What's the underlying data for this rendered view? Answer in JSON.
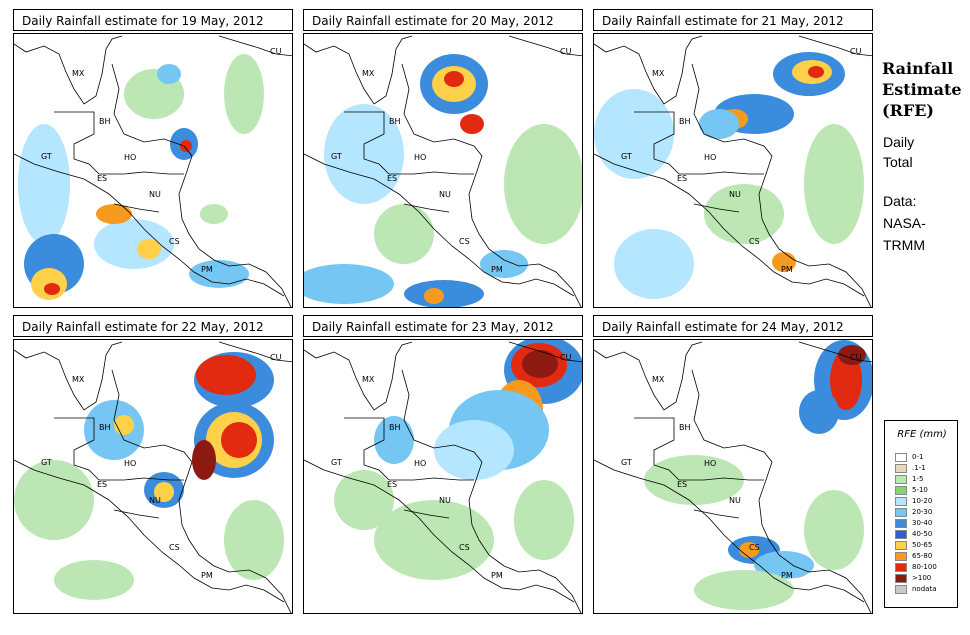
{
  "panels": [
    {
      "title": "Daily Rainfall estimate for  19 May, 2012"
    },
    {
      "title": "Daily Rainfall estimate for  20 May, 2012"
    },
    {
      "title": "Daily Rainfall estimate for  21 May, 2012"
    },
    {
      "title": "Daily Rainfall estimate for  22 May, 2012"
    },
    {
      "title": "Daily Rainfall estimate for  23 May, 2012"
    },
    {
      "title": "Daily Rainfall estimate for  24 May, 2012"
    }
  ],
  "map_labels": [
    "MX",
    "CU",
    "BH",
    "GT",
    "HO",
    "ES",
    "NU",
    "CS",
    "PM"
  ],
  "sidebar": {
    "title_lines": [
      "Rainfall",
      "Estimate",
      "(RFE)"
    ],
    "subtitle_lines": [
      "Daily",
      "Total"
    ],
    "source_lines": [
      "Data:",
      "NASA-",
      "TRMM"
    ]
  },
  "legend": {
    "title": "RFE (mm)",
    "items": [
      {
        "label": "0-1",
        "color": "#ffffff"
      },
      {
        "label": ".1-1",
        "color": "#e9d6bf"
      },
      {
        "label": "1-5",
        "color": "#bce6b4"
      },
      {
        "label": "5-10",
        "color": "#7fd86a"
      },
      {
        "label": "10-20",
        "color": "#b4e6ff"
      },
      {
        "label": "20-30",
        "color": "#75c6f2"
      },
      {
        "label": "30-40",
        "color": "#3c8cdd"
      },
      {
        "label": "40-50",
        "color": "#2b5fd6"
      },
      {
        "label": "50-65",
        "color": "#ffd04a"
      },
      {
        "label": "65-80",
        "color": "#f69a20"
      },
      {
        "label": "80-100",
        "color": "#e12a10"
      },
      {
        ">100": "",
        "label": ">100",
        "color": "#8c1a12"
      },
      {
        "label": "nodata",
        "color": "#c8c8c8"
      }
    ]
  },
  "colors": {
    "light_green": "#bce6b4",
    "green": "#7fd86a",
    "light_blue": "#b4e6ff",
    "sky": "#75c6f2",
    "blue": "#3c8cdd",
    "deep_blue": "#2b5fd6",
    "yellow": "#ffd04a",
    "orange": "#f69a20",
    "red": "#e12a10",
    "maroon": "#8c1a12"
  }
}
